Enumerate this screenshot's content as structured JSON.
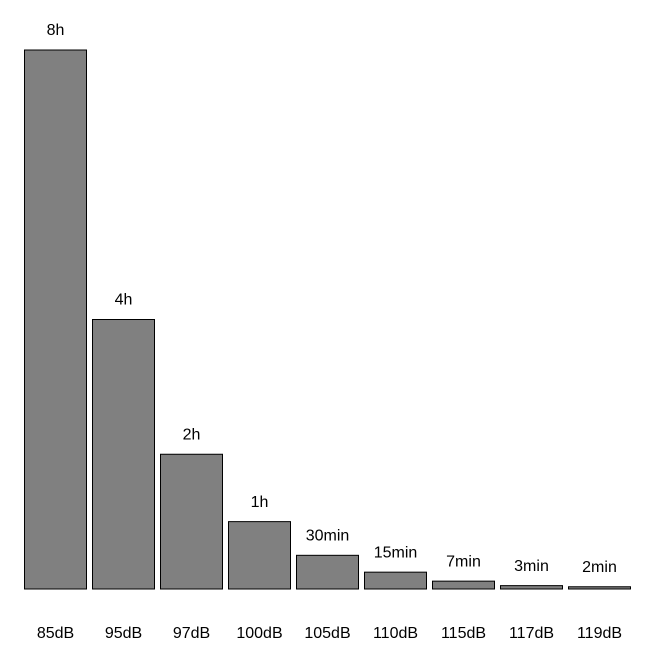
{
  "chart_data": {
    "type": "bar",
    "categories": [
      "85dB",
      "95dB",
      "97dB",
      "100dB",
      "105dB",
      "110dB",
      "115dB",
      "117dB",
      "119dB"
    ],
    "values": [
      480,
      240,
      120,
      60,
      30,
      15,
      7,
      3,
      2
    ],
    "value_labels": [
      "8h",
      "4h",
      "2h",
      "1h",
      "30min",
      "15min",
      "7min",
      "3min",
      "2min"
    ],
    "color": "#808080"
  }
}
